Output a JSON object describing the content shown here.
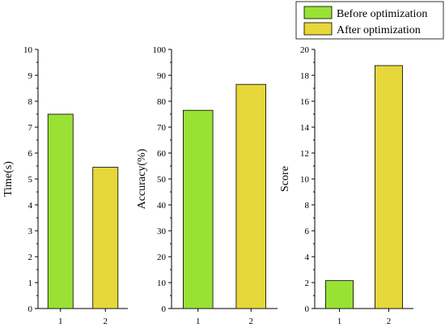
{
  "legend": {
    "placement": "top-right",
    "entries": [
      {
        "label": "Before optimization",
        "color": "#99e234"
      },
      {
        "label": "After optimization",
        "color": "#e6d73a"
      }
    ]
  },
  "chart_data": [
    {
      "type": "bar",
      "categories": [
        "1",
        "2"
      ],
      "values": [
        7.5,
        5.45
      ],
      "colors": [
        "#99e234",
        "#e6d73a"
      ],
      "ylabel": "Time(s)",
      "ylim": [
        0,
        10
      ],
      "yticks": [
        "0",
        "1",
        "2",
        "3",
        "4",
        "5",
        "6",
        "7",
        "8",
        "9",
        "10"
      ],
      "grid": false
    },
    {
      "type": "bar",
      "categories": [
        "1",
        "2"
      ],
      "values": [
        76.5,
        86.5
      ],
      "colors": [
        "#99e234",
        "#e6d73a"
      ],
      "ylabel": "Accuracy(%)",
      "ylim": [
        0,
        100
      ],
      "yticks": [
        "0",
        "10",
        "20",
        "30",
        "40",
        "50",
        "60",
        "70",
        "80",
        "90",
        "100"
      ],
      "grid": false
    },
    {
      "type": "bar",
      "categories": [
        "1",
        "2"
      ],
      "values": [
        2.15,
        18.75
      ],
      "colors": [
        "#99e234",
        "#e6d73a"
      ],
      "ylabel": "Score",
      "ylim": [
        0,
        20
      ],
      "yticks": [
        "0",
        "2",
        "4",
        "6",
        "8",
        "10",
        "12",
        "14",
        "16",
        "18",
        "20"
      ],
      "grid": false
    }
  ]
}
